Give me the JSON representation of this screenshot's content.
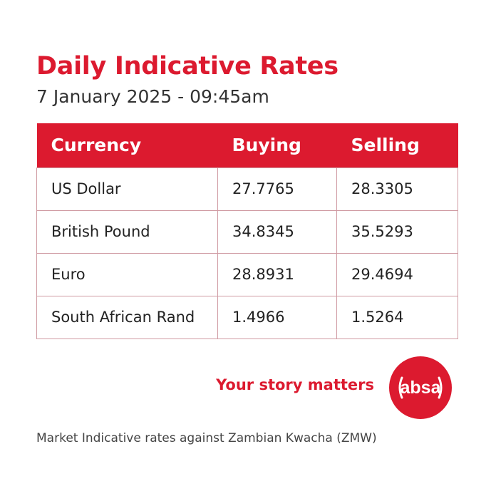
{
  "heading": {
    "title": "Daily Indicative Rates",
    "subtitle": "7 January 2025 - 09:45am"
  },
  "table": {
    "columns": [
      "Currency",
      "Buying",
      "Selling"
    ],
    "rows": [
      {
        "currency": "US Dollar",
        "buying": "27.7765",
        "selling": "28.3305"
      },
      {
        "currency": "British Pound",
        "buying": "34.8345",
        "selling": "35.5293"
      },
      {
        "currency": "Euro",
        "buying": "28.8931",
        "selling": "29.4694"
      },
      {
        "currency": "South African Rand",
        "buying": "1.4966",
        "selling": "1.5264"
      }
    ]
  },
  "branding": {
    "tagline": "Your story matters",
    "logo_text": "absa",
    "brand_color": "#dc1a2f"
  },
  "footer": {
    "note": "Market Indicative rates against Zambian Kwacha (ZMW)"
  }
}
